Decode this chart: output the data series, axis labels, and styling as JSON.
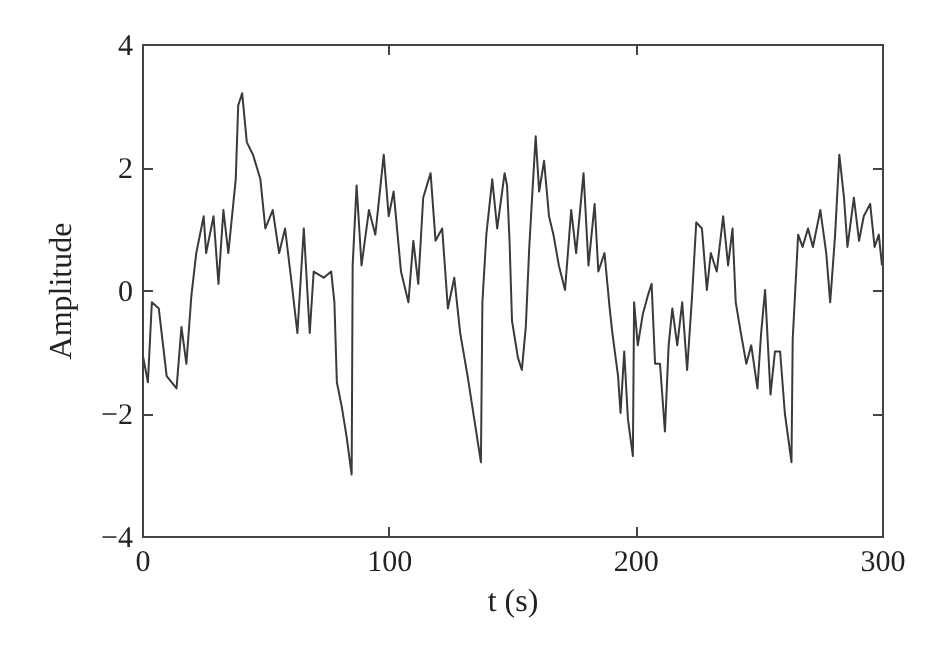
{
  "chart_data": {
    "type": "line",
    "xlabel": "t (s)",
    "ylabel": "Amplitude",
    "xlim": [
      0,
      300
    ],
    "xticks": [
      0,
      100,
      200,
      300
    ],
    "ylim": [
      -4,
      4
    ],
    "yticks": [
      -4,
      -2,
      0,
      2,
      4
    ],
    "grid": false,
    "series": [
      {
        "color": "#3a3a3a",
        "x": [
          0.5,
          2.4,
          4,
          6.8,
          10,
          14,
          16,
          18,
          20,
          22,
          25,
          26,
          29,
          31,
          33,
          35,
          38,
          39,
          40.6,
          42.5,
          45,
          48,
          50,
          53,
          55.6,
          58,
          61,
          63,
          65.6,
          68,
          69.6,
          73.7,
          76.7,
          78,
          79,
          81,
          83,
          85,
          85.4,
          87,
          89,
          92,
          94.6,
          98,
          100,
          102,
          105,
          108,
          110,
          112,
          114,
          117,
          119,
          121.7,
          124,
          126.6,
          129,
          132,
          134.7,
          137.4,
          138,
          139.6,
          142,
          144,
          147,
          148,
          149,
          150,
          152.4,
          154,
          155.6,
          157,
          158,
          159.6,
          161,
          163,
          165,
          166.8,
          169,
          171.5,
          174,
          176,
          179,
          181,
          183.5,
          185,
          187.5,
          189.6,
          190.7,
          193,
          194,
          195.5,
          197,
          199,
          199.5,
          201,
          203,
          205,
          206.6,
          208,
          210,
          212,
          213.5,
          215,
          217,
          219,
          221,
          223,
          224.7,
          227,
          229,
          230.6,
          233,
          235.6,
          237.6,
          239.4,
          240.7,
          242.8,
          245,
          247,
          249.5,
          251,
          252.6,
          254.8,
          256.6,
          258.7,
          260.6,
          263.3,
          263.8,
          266,
          267.8,
          270,
          272,
          275,
          277.4,
          279,
          281,
          282.7,
          284.6,
          286,
          288.6,
          290.7,
          292.6,
          295.2,
          297,
          298.7,
          300
        ],
        "values": [
          -1.1,
          -1.5,
          -0.2,
          -0.3,
          -1.4,
          -1.6,
          -0.6,
          -1.2,
          -0.1,
          0.6,
          1.2,
          0.6,
          1.2,
          0.1,
          1.3,
          0.6,
          1.8,
          3.0,
          3.2,
          2.4,
          2.2,
          1.8,
          1.0,
          1.3,
          0.6,
          1.0,
          0,
          -0.7,
          1.0,
          -0.7,
          0.3,
          0.2,
          0.3,
          -0.2,
          -1.5,
          -1.9,
          -2.4,
          -3.0,
          0.4,
          1.7,
          0.4,
          1.3,
          0.9,
          2.2,
          1.2,
          1.6,
          0.3,
          -0.2,
          0.8,
          0.1,
          1.5,
          1.9,
          0.8,
          1.0,
          -0.3,
          0.2,
          -0.7,
          -1.4,
          -2.1,
          -2.8,
          -0.2,
          0.9,
          1.8,
          1.0,
          1.9,
          1.7,
          0.8,
          -0.5,
          -1.1,
          -1.3,
          -0.6,
          0.7,
          1.4,
          2.5,
          1.6,
          2.1,
          1.2,
          0.9,
          0.4,
          0,
          1.3,
          0.6,
          1.9,
          0.4,
          1.4,
          0.3,
          0.6,
          -0.3,
          -0.7,
          -1.4,
          -2.0,
          -1.0,
          -2.1,
          -2.7,
          -0.2,
          -0.9,
          -0.4,
          -0.1,
          0.1,
          -1.2,
          -1.2,
          -2.3,
          -0.9,
          -0.3,
          -0.9,
          -0.2,
          -1.3,
          -0.1,
          1.1,
          1.0,
          0,
          0.6,
          0.3,
          1.2,
          0.4,
          1.0,
          -0.2,
          -0.7,
          -1.2,
          -0.9,
          -1.6,
          -0.7,
          0,
          -1.7,
          -1.0,
          -1.0,
          -2.0,
          -2.8,
          -0.8,
          0.9,
          0.7,
          1.0,
          0.7,
          1.3,
          0.6,
          -0.2,
          0.9,
          2.2,
          1.5,
          0.7,
          1.5,
          0.8,
          1.2,
          1.4,
          0.7,
          0.9,
          0.4
        ]
      }
    ]
  }
}
